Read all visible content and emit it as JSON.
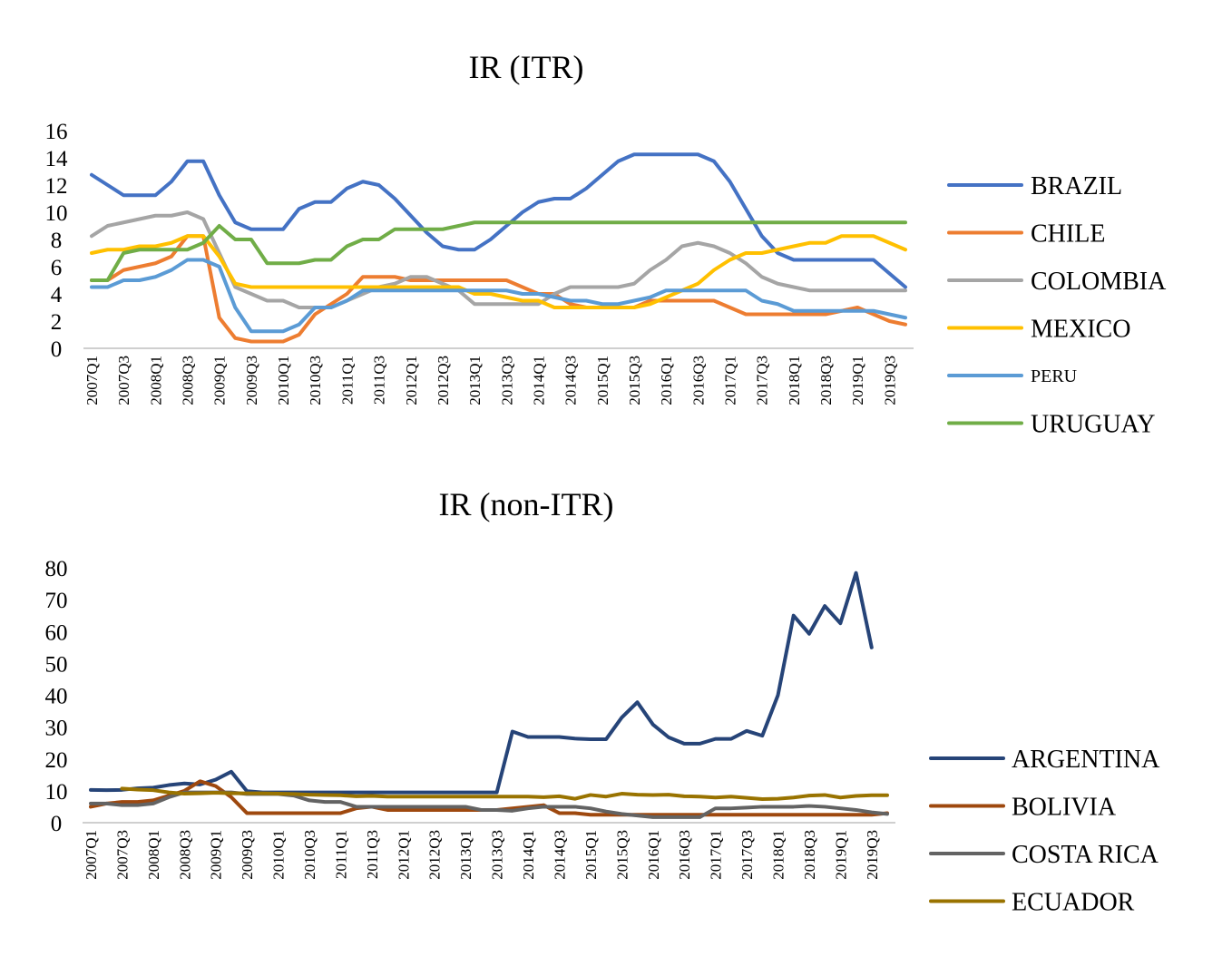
{
  "chart_data": [
    {
      "type": "line",
      "title": "IR (ITR)",
      "xlabel": "",
      "ylabel": "",
      "ylim": [
        0,
        16
      ],
      "yticks": [
        0,
        2,
        4,
        6,
        8,
        10,
        12,
        14,
        16
      ],
      "grid": false,
      "legend": "right",
      "x": [
        "2007Q1",
        "2007Q2",
        "2007Q3",
        "2007Q4",
        "2008Q1",
        "2008Q2",
        "2008Q3",
        "2008Q4",
        "2009Q1",
        "2009Q2",
        "2009Q3",
        "2009Q4",
        "2010Q1",
        "2010Q2",
        "2010Q3",
        "2010Q4",
        "2011Q1",
        "2011Q2",
        "2011Q3",
        "2011Q4",
        "2012Q1",
        "2012Q2",
        "2012Q3",
        "2012Q4",
        "2013Q1",
        "2013Q2",
        "2013Q3",
        "2013Q4",
        "2014Q1",
        "2014Q2",
        "2014Q3",
        "2014Q4",
        "2015Q1",
        "2015Q2",
        "2015Q3",
        "2015Q4",
        "2016Q1",
        "2016Q2",
        "2016Q3",
        "2016Q4",
        "2017Q1",
        "2017Q2",
        "2017Q3",
        "2017Q4",
        "2018Q1",
        "2018Q2",
        "2018Q3",
        "2018Q4",
        "2019Q1",
        "2019Q2",
        "2019Q3",
        "2019Q4"
      ],
      "xtick_labels": [
        "2007Q1",
        "2007Q3",
        "2008Q1",
        "2008Q3",
        "2009Q1",
        "2009Q3",
        "2010Q1",
        "2010Q3",
        "2011Q1",
        "2011Q3",
        "2012Q1",
        "2012Q3",
        "2013Q1",
        "2013Q3",
        "2014Q1",
        "2014Q3",
        "2015Q1",
        "2015Q3",
        "2016Q1",
        "2016Q3",
        "2017Q1",
        "2017Q3",
        "2018Q1",
        "2018Q3",
        "2019Q1",
        "2019Q3"
      ],
      "series": [
        {
          "name": "BRAZIL",
          "color": "#4472C4",
          "values": [
            12.75,
            12.0,
            11.25,
            11.25,
            11.25,
            12.25,
            13.75,
            13.75,
            11.25,
            9.25,
            8.75,
            8.75,
            8.75,
            10.25,
            10.75,
            10.75,
            11.75,
            12.25,
            12.0,
            11.0,
            9.75,
            8.5,
            7.5,
            7.25,
            7.25,
            8.0,
            9.0,
            10.0,
            10.75,
            11.0,
            11.0,
            11.75,
            12.75,
            13.75,
            14.25,
            14.25,
            14.25,
            14.25,
            14.25,
            13.75,
            12.25,
            10.25,
            8.25,
            7.0,
            6.5,
            6.5,
            6.5,
            6.5,
            6.5,
            6.5,
            5.5,
            4.5
          ]
        },
        {
          "name": "CHILE",
          "color": "#ED7D31",
          "values": [
            5.0,
            5.0,
            5.75,
            6.0,
            6.25,
            6.75,
            8.25,
            8.25,
            2.25,
            0.75,
            0.5,
            0.5,
            0.5,
            1.0,
            2.5,
            3.25,
            4.0,
            5.25,
            5.25,
            5.25,
            5.0,
            5.0,
            5.0,
            5.0,
            5.0,
            5.0,
            5.0,
            4.5,
            4.0,
            4.0,
            3.25,
            3.0,
            3.0,
            3.0,
            3.0,
            3.5,
            3.5,
            3.5,
            3.5,
            3.5,
            3.0,
            2.5,
            2.5,
            2.5,
            2.5,
            2.5,
            2.5,
            2.75,
            3.0,
            2.5,
            2.0,
            1.75
          ]
        },
        {
          "name": "COLOMBIA",
          "color": "#A5A5A5",
          "values": [
            8.25,
            9.0,
            9.25,
            9.5,
            9.75,
            9.75,
            10.0,
            9.5,
            7.0,
            4.5,
            4.0,
            3.5,
            3.5,
            3.0,
            3.0,
            3.0,
            3.5,
            4.0,
            4.5,
            4.75,
            5.25,
            5.25,
            4.75,
            4.25,
            3.25,
            3.25,
            3.25,
            3.25,
            3.25,
            4.0,
            4.5,
            4.5,
            4.5,
            4.5,
            4.75,
            5.75,
            6.5,
            7.5,
            7.75,
            7.5,
            7.0,
            6.25,
            5.25,
            4.75,
            4.5,
            4.25,
            4.25,
            4.25,
            4.25,
            4.25,
            4.25,
            4.25
          ]
        },
        {
          "name": "MEXICO",
          "color": "#FFC000",
          "values": [
            7.0,
            7.25,
            7.25,
            7.5,
            7.5,
            7.75,
            8.25,
            8.25,
            6.75,
            4.75,
            4.5,
            4.5,
            4.5,
            4.5,
            4.5,
            4.5,
            4.5,
            4.5,
            4.5,
            4.5,
            4.5,
            4.5,
            4.5,
            4.5,
            4.0,
            4.0,
            3.75,
            3.5,
            3.5,
            3.0,
            3.0,
            3.0,
            3.0,
            3.0,
            3.0,
            3.25,
            3.75,
            4.25,
            4.75,
            5.75,
            6.5,
            7.0,
            7.0,
            7.25,
            7.5,
            7.75,
            7.75,
            8.25,
            8.25,
            8.25,
            7.75,
            7.25
          ]
        },
        {
          "name": "PERU",
          "color": "#5B9BD5",
          "values": [
            4.5,
            4.5,
            5.0,
            5.0,
            5.25,
            5.75,
            6.5,
            6.5,
            6.0,
            3.0,
            1.25,
            1.25,
            1.25,
            1.75,
            3.0,
            3.0,
            3.5,
            4.25,
            4.25,
            4.25,
            4.25,
            4.25,
            4.25,
            4.25,
            4.25,
            4.25,
            4.25,
            4.0,
            4.0,
            3.75,
            3.5,
            3.5,
            3.25,
            3.25,
            3.5,
            3.75,
            4.25,
            4.25,
            4.25,
            4.25,
            4.25,
            4.25,
            3.5,
            3.25,
            2.75,
            2.75,
            2.75,
            2.75,
            2.75,
            2.75,
            2.5,
            2.25
          ]
        },
        {
          "name": "URUGUAY",
          "color": "#70AD47",
          "values": [
            5.0,
            5.0,
            7.0,
            7.25,
            7.25,
            7.25,
            7.25,
            7.75,
            9.0,
            8.0,
            8.0,
            6.25,
            6.25,
            6.25,
            6.5,
            6.5,
            7.5,
            8.0,
            8.0,
            8.75,
            8.75,
            8.75,
            8.75,
            9.0,
            9.25,
            9.25,
            9.25,
            9.25,
            9.25,
            9.25,
            9.25,
            9.25,
            9.25,
            9.25,
            9.25,
            9.25,
            9.25,
            9.25,
            9.25,
            9.25,
            9.25,
            9.25,
            9.25,
            9.25,
            9.25,
            9.25,
            9.25,
            9.25,
            9.25,
            9.25,
            9.25,
            9.25
          ]
        }
      ]
    },
    {
      "type": "line",
      "title": "IR (non-ITR)",
      "xlabel": "",
      "ylabel": "",
      "ylim": [
        0,
        80
      ],
      "yticks": [
        0,
        10,
        20,
        30,
        40,
        50,
        60,
        70,
        80
      ],
      "grid": false,
      "legend": "bottom-right",
      "x": [
        "2007Q1",
        "2007Q2",
        "2007Q3",
        "2007Q4",
        "2008Q1",
        "2008Q2",
        "2008Q3",
        "2008Q4",
        "2009Q1",
        "2009Q2",
        "2009Q3",
        "2009Q4",
        "2010Q1",
        "2010Q2",
        "2010Q3",
        "2010Q4",
        "2011Q1",
        "2011Q2",
        "2011Q3",
        "2011Q4",
        "2012Q1",
        "2012Q2",
        "2012Q3",
        "2012Q4",
        "2013Q1",
        "2013Q2",
        "2013Q3",
        "2013Q4",
        "2014Q1",
        "2014Q2",
        "2014Q3",
        "2014Q4",
        "2015Q1",
        "2015Q2",
        "2015Q3",
        "2015Q4",
        "2016Q1",
        "2016Q2",
        "2016Q3",
        "2016Q4",
        "2017Q1",
        "2017Q2",
        "2017Q3",
        "2017Q4",
        "2018Q1",
        "2018Q2",
        "2018Q3",
        "2018Q4",
        "2019Q1",
        "2019Q2",
        "2019Q3",
        "2019Q4"
      ],
      "xtick_labels": [
        "2007Q1",
        "2007Q3",
        "2008Q1",
        "2008Q3",
        "2009Q1",
        "2009Q3",
        "2010Q1",
        "2010Q3",
        "2011Q1",
        "2011Q3",
        "2012Q1",
        "2012Q3",
        "2013Q1",
        "2013Q3",
        "2014Q1",
        "2014Q3",
        "2015Q1",
        "2015Q3",
        "2016Q1",
        "2016Q3",
        "2017Q1",
        "2017Q3",
        "2018Q1",
        "2018Q3",
        "2019Q1",
        "2019Q3"
      ],
      "series": [
        {
          "name": "ARGENTINA",
          "color": "#264478",
          "values": [
            10.3,
            10.2,
            10.3,
            10.8,
            11.0,
            11.8,
            12.3,
            12.0,
            13.5,
            16.0,
            9.9,
            9.5,
            9.5,
            9.5,
            9.5,
            9.5,
            9.5,
            9.5,
            9.5,
            9.5,
            9.5,
            9.5,
            9.5,
            9.5,
            9.5,
            9.5,
            9.5,
            28.6,
            26.9,
            26.9,
            26.9,
            26.4,
            26.2,
            26.2,
            33.0,
            37.8,
            30.8,
            26.8,
            24.8,
            24.8,
            26.3,
            26.3,
            28.8,
            27.3,
            40.0,
            65.0,
            59.3,
            68.0,
            62.6,
            78.4,
            55.0,
            null
          ]
        },
        {
          "name": "BOLIVIA",
          "color": "#9E480E",
          "values": [
            5.0,
            6.0,
            6.5,
            6.5,
            7.0,
            8.5,
            10.0,
            13.0,
            11.5,
            8.0,
            3.0,
            3.0,
            3.0,
            3.0,
            3.0,
            3.0,
            3.0,
            4.5,
            5.0,
            4.0,
            4.0,
            4.0,
            4.0,
            4.0,
            4.0,
            4.0,
            4.0,
            4.5,
            5.0,
            5.5,
            3.0,
            3.0,
            2.5,
            2.5,
            2.5,
            2.5,
            2.5,
            2.5,
            2.5,
            2.5,
            2.5,
            2.5,
            2.5,
            2.5,
            2.5,
            2.5,
            2.5,
            2.5,
            2.5,
            2.5,
            2.5,
            3.0
          ]
        },
        {
          "name": "COSTA RICA",
          "color": "#636363",
          "values": [
            6.0,
            6.0,
            5.5,
            5.5,
            6.0,
            8.0,
            9.5,
            9.5,
            9.5,
            9.5,
            9.0,
            9.0,
            9.0,
            8.5,
            7.0,
            6.5,
            6.5,
            5.0,
            5.0,
            5.0,
            5.0,
            5.0,
            5.0,
            5.0,
            5.0,
            4.0,
            4.0,
            3.75,
            4.5,
            5.0,
            5.0,
            5.0,
            4.5,
            3.5,
            2.75,
            2.25,
            1.75,
            1.75,
            1.75,
            1.75,
            4.5,
            4.5,
            4.75,
            5.0,
            5.0,
            5.0,
            5.25,
            5.0,
            4.5,
            4.0,
            3.25,
            2.75
          ]
        },
        {
          "name": "ECUADOR",
          "color": "#997300",
          "values": [
            null,
            null,
            10.7,
            10.4,
            10.2,
            9.5,
            9.1,
            9.2,
            9.4,
            9.2,
            9.2,
            9.2,
            9.1,
            9.0,
            8.8,
            8.7,
            8.6,
            8.3,
            8.4,
            8.2,
            8.2,
            8.2,
            8.2,
            8.2,
            8.2,
            8.2,
            8.2,
            8.2,
            8.2,
            8.0,
            8.3,
            7.5,
            8.7,
            8.2,
            9.1,
            8.8,
            8.7,
            8.8,
            8.3,
            8.2,
            7.9,
            8.2,
            7.8,
            7.4,
            7.5,
            7.9,
            8.5,
            8.7,
            7.9,
            8.4,
            8.6,
            8.6
          ]
        }
      ]
    }
  ]
}
